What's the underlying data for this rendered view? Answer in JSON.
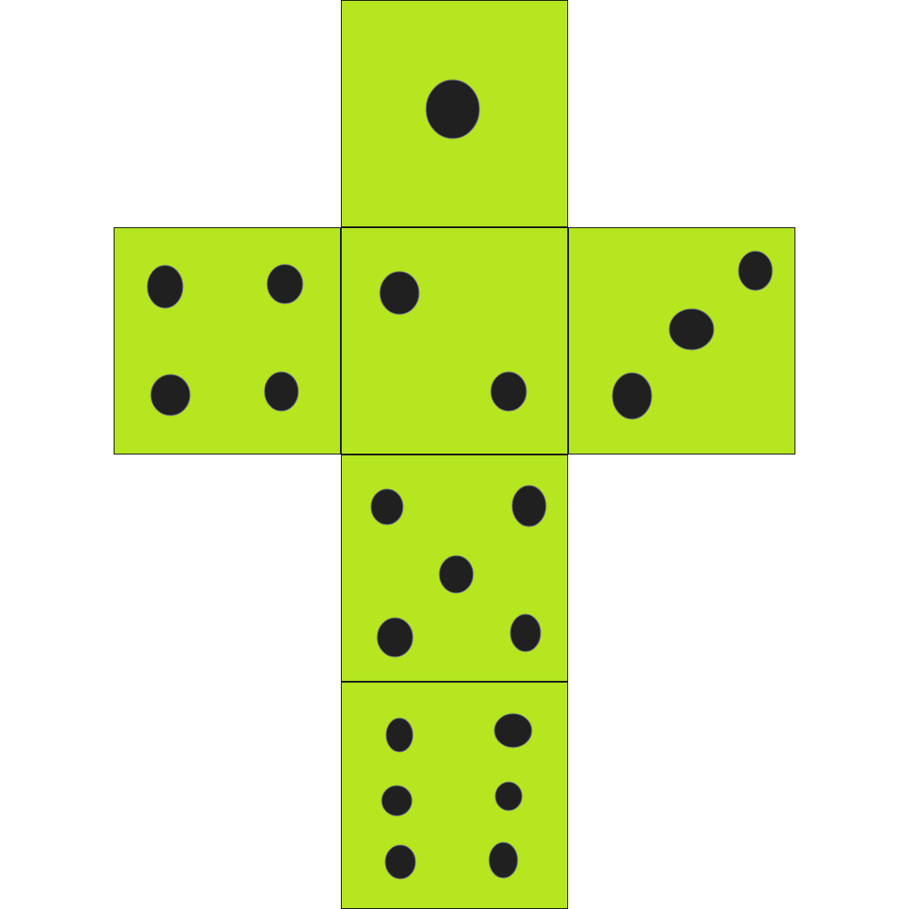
{
  "die_net": {
    "face_color": "#b5e61f",
    "pip_color": "#202020",
    "outline_color": "#1a1a1a",
    "faces": [
      {
        "name": "face-top",
        "pips": 1
      },
      {
        "name": "face-left",
        "pips": 4
      },
      {
        "name": "face-center",
        "pips": 2
      },
      {
        "name": "face-right",
        "pips": 3
      },
      {
        "name": "face-lower",
        "pips": 5
      },
      {
        "name": "face-bottom",
        "pips": 6
      }
    ]
  }
}
